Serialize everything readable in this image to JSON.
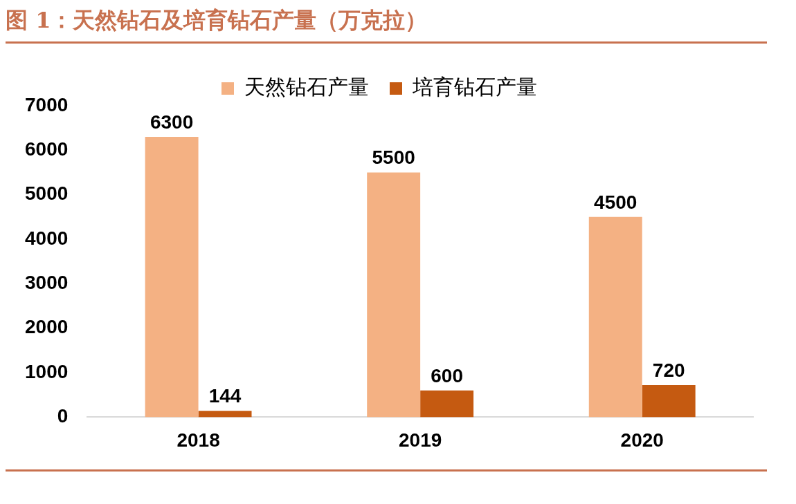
{
  "chart_data": {
    "type": "bar",
    "title": "图 1：天然钻石及培育钻石产量（万克拉）",
    "categories": [
      "2018",
      "2019",
      "2020"
    ],
    "series": [
      {
        "name": "天然钻石产量",
        "color": "#f4b183",
        "values": [
          6300,
          5500,
          4500
        ]
      },
      {
        "name": "培育钻石产量",
        "color": "#c55a11",
        "values": [
          144,
          600,
          720
        ]
      }
    ],
    "ylim": [
      0,
      7000
    ],
    "yticks": [
      0,
      1000,
      2000,
      3000,
      4000,
      5000,
      6000,
      7000
    ],
    "grid": false,
    "legend": "top",
    "data_labels": true
  }
}
